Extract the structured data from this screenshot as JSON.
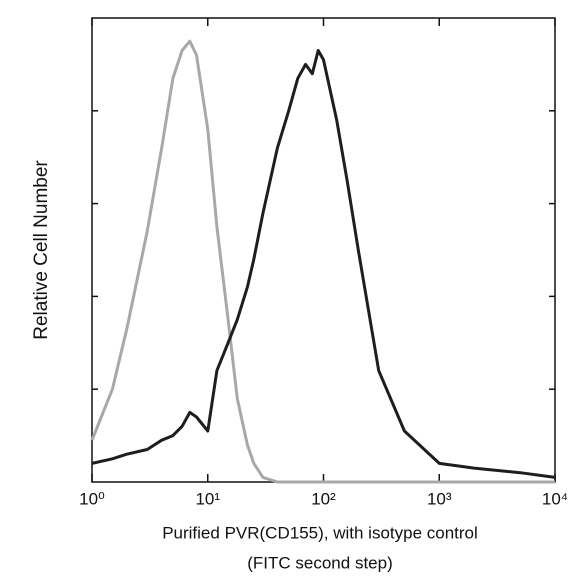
{
  "chart_data": {
    "type": "line",
    "ylabel": "Relative Cell Number",
    "xlabel": [
      "Purified PVR(CD155), with isotype control",
      "(FITC second step)"
    ],
    "x": [
      1,
      1.5,
      2,
      3,
      4,
      5,
      6,
      7,
      8,
      10,
      12,
      15,
      18,
      22,
      25,
      30,
      40,
      50,
      60,
      70,
      80,
      90,
      100,
      130,
      160,
      200,
      300,
      500,
      1000,
      2000,
      5000,
      10000
    ],
    "series": [
      {
        "color": "#a8a8a8",
        "values": [
          9,
          20,
          33,
          54,
          72,
          87,
          93,
          95,
          92,
          76,
          55,
          35,
          18,
          8,
          4,
          1,
          0,
          0,
          0,
          0,
          0,
          0,
          0,
          0,
          0,
          0,
          0,
          0,
          0,
          0,
          0,
          0
        ]
      },
      {
        "color": "#1e1e1e",
        "values": [
          4,
          5,
          6,
          7,
          9,
          10,
          12,
          15,
          14,
          11,
          24,
          30,
          35,
          42,
          48,
          58,
          72,
          80,
          87,
          90,
          88,
          93,
          91,
          78,
          65,
          50,
          24,
          11,
          4,
          3,
          2,
          1
        ]
      }
    ],
    "xlog": true,
    "xlim": [
      1,
      10000
    ],
    "xticks": [
      {
        "value": 1,
        "label": "10⁰"
      },
      {
        "value": 10,
        "label": "10¹"
      },
      {
        "value": 100,
        "label": "10²"
      },
      {
        "value": 1000,
        "label": "10³"
      },
      {
        "value": 10000,
        "label": "10⁴"
      }
    ],
    "ylim": [
      0,
      100
    ],
    "yticks": [
      20,
      40,
      60,
      80
    ]
  }
}
